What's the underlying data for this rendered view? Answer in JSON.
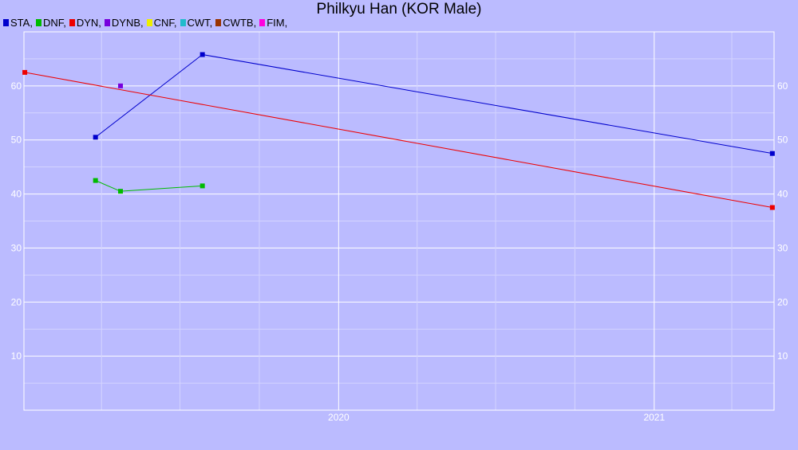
{
  "chart_data": {
    "type": "line",
    "title": "Philkyu Han (KOR Male)",
    "legend": [
      {
        "name": "STA",
        "color": "#0000cc"
      },
      {
        "name": "DNF",
        "color": "#00bb00"
      },
      {
        "name": "DYN",
        "color": "#ee0000"
      },
      {
        "name": "DYNB",
        "color": "#7700dd"
      },
      {
        "name": "CNF",
        "color": "#eeee00"
      },
      {
        "name": "CWT",
        "color": "#22bbcc"
      },
      {
        "name": "CWTB",
        "color": "#993300"
      },
      {
        "name": "FIM",
        "color": "#ff00dd"
      }
    ],
    "legend_position": "top-left",
    "x_axis": {
      "type": "date",
      "range": [
        "2019-01-01",
        "2021-05-20"
      ],
      "tick_labels": [
        "2020",
        "2021"
      ]
    },
    "y_axis": {
      "range": [
        0,
        70
      ],
      "ticks": [
        10,
        20,
        30,
        40,
        50,
        60
      ],
      "labels_left": true,
      "labels_right": true
    },
    "grid": true,
    "series": [
      {
        "name": "STA",
        "color": "#0000cc",
        "points": [
          {
            "x": "2019-03-25",
            "y": 50.5
          },
          {
            "x": "2019-07-27",
            "y": 65.8
          },
          {
            "x": "2021-05-18",
            "y": 47.5
          }
        ]
      },
      {
        "name": "DNF",
        "color": "#00bb00",
        "points": [
          {
            "x": "2019-03-25",
            "y": 42.5
          },
          {
            "x": "2019-04-23",
            "y": 40.5
          },
          {
            "x": "2019-07-27",
            "y": 41.5
          }
        ]
      },
      {
        "name": "DYN",
        "color": "#ee0000",
        "points": [
          {
            "x": "2019-01-02",
            "y": 62.5
          },
          {
            "x": "2021-05-18",
            "y": 37.5
          }
        ]
      },
      {
        "name": "DYNB",
        "color": "#7700dd",
        "points": [
          {
            "x": "2019-04-23",
            "y": 60
          }
        ]
      }
    ]
  }
}
